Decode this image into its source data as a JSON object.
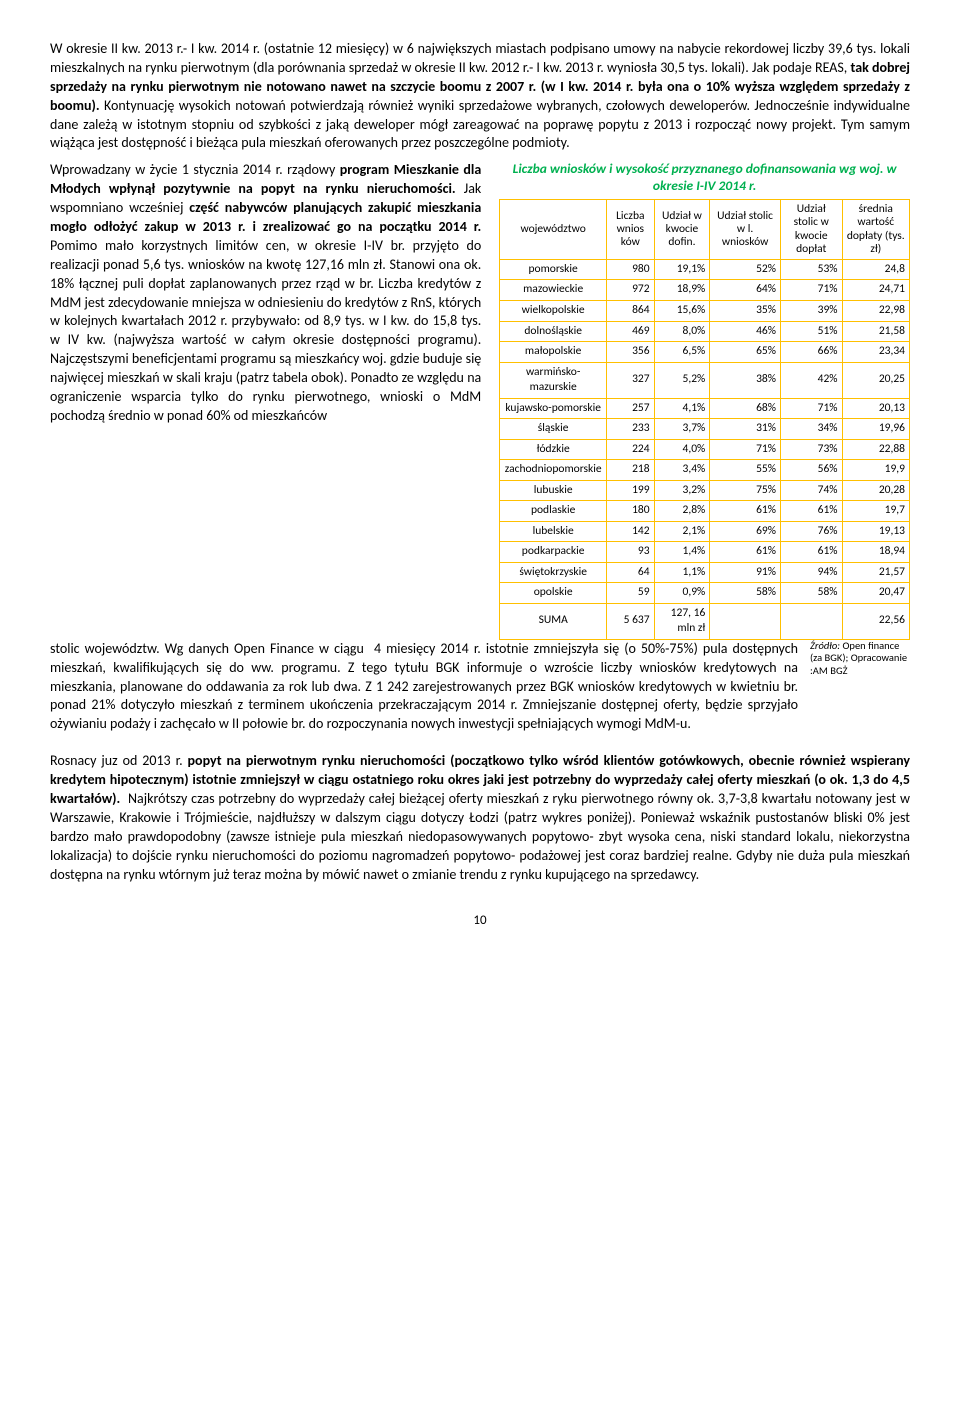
{
  "para1_text": "W okresie II kw. 2013 r.- I kw. 2014 r. (ostatnie 12 miesięcy) w 6 największych miastach podpisano umowy na nabycie rekordowej liczby 39,6 tys. lokali mieszkalnych na rynku pierwotnym (dla porównania sprzedaż w okresie II kw. 2012 r.- I kw. 2013 r. wyniosła 30,5 tys. lokali). Jak podaje REAS, tak dobrej sprzedaży na rynku pierwotnym nie notowano nawet na szczycie boomu z 2007 r. (w I kw. 2014 r. była ona o 10% wyższa względem sprzedaży z boomu). Kontynuację wysokich notowań potwierdzają również wyniki sprzedażowe wybranych, czołowych deweloperów. Jednocześnie indywidualne dane zależą w istotnym stopniu od szybkości z jaką deweloper mógł zareagować na poprawę popytu z 2013 i rozpocząć nowy projekt. Tym samym wiążąca jest dostępność i bieżąca pula mieszkań oferowanych przez poszczególne podmioty.",
  "para2_text": "Wprowadzany w życie 1 stycznia 2014 r. rządowy program Mieszkanie dla Młodych wpłynął pozytywnie na popyt na rynku nieruchomości. Jak wspomniano wcześniej część nabywców planujących zakupić mieszkania mogło odłożyć zakup w 2013 r. i zrealizować go na początku 2014 r. Pomimo mało korzystnych limitów cen, w okresie I-IV br. przyjęto do realizacji ponad 5,6 tys. wniosków na kwotę 127,16 mln zł. Stanowi ona ok. 18% łącznej puli dopłat zaplanowanych przez rząd w br. Liczba kredytów z MdM jest zdecydowanie mniejsza w odniesieniu do kredytów z RnS, których w kolejnych kwartałach 2012 r. przybywało: od 8,9 tys. w I kw. do 15,8 tys. w IV kw. (najwyższa wartość w całym okresie dostępności programu). Najczęstszymi beneficjentami programu są mieszkańcy woj. gdzie buduje się najwięcej mieszkań w skali kraju (patrz tabela obok). Ponadto ze względu na ograniczenie wsparcia tylko do rynku pierwotnego, wnioski o MdM pochodzą średnio w ponad 60% od mieszkańców",
  "para3_text": "stolic województw. Wg danych Open Finance w ciągu 4 miesięcy 2014 r. istotnie zmniejszyła się (o 50%-75%) pula dostępnych mieszkań, kwalifikujących się do ww. programu. Z tego tytułu BGK informuje o wzroście liczby wniosków kredytowych na mieszkania, planowane do oddawania za rok lub dwa. Z 1 242 zarejestrowanych przez BGK wniosków kredytowych w kwietniu br. ponad 21% dotyczyło mieszkań z terminem ukończenia przekraczającym 2014 r. Zmniejszanie dostępnej oferty, będzie sprzyjało ożywianiu podaży i zachęcało w II połowie br. do rozpoczynania nowych inwestycji spełniających wymogi MdM-u.",
  "para4_text": "Rosnacy juz od 2013 r. popyt na pierwotnym rynku nieruchomości (początkowo tylko wśród klientów gotówkowych, obecnie również wspierany kredytem hipotecznym) istotnie zmniejszył w ciągu ostatniego roku okres jaki jest potrzebny do wyprzedaży całej oferty mieszkań (o ok. 1,3 do 4,5 kwartałów). Najkrótszy czas potrzebny do wyprzedaży całej bieżącej oferty mieszkań z ryku pierwotnego równy ok. 3,7-3,8 kwartału notowany jest w Warszawie, Krakowie i Trójmieście, najdłuższy w dalszym ciągu dotyczy Łodzi (patrz wykres poniżej). Ponieważ wskaźnik pustostanów bliski 0% jest bardzo mało prawdopodobny (zawsze istnieje pula mieszkań niedopasowywanych popytowo- zbyt wysoka cena, niski standard lokalu, niekorzystna lokalizacja) to dojście rynku nieruchomości do poziomu nagromadzeń popytowo- podażowej jest coraz bardziej realne. Gdyby nie duża pula mieszkań dostępna na rynku wtórnym już teraz można by mówić nawet o zmianie trendu z rynku kupującego na sprzedawcy.",
  "table": {
    "title": "Liczba wniosków i wysokość przyznanego dofinansowania wg woj. w okresie I-IV 2014 r.",
    "headers": [
      "województwo",
      "Liczba wnios ków",
      "Udział w kwocie dofin.",
      "Udział stolic w l. wniosków",
      "Udział stolic w kwocie dopłat",
      "średnia wartość dopłaty (tys. zł)"
    ],
    "rows": [
      [
        "pomorskie",
        "980",
        "19,1%",
        "52%",
        "53%",
        "24,8"
      ],
      [
        "mazowieckie",
        "972",
        "18,9%",
        "64%",
        "71%",
        "24,71"
      ],
      [
        "wielkopolskie",
        "864",
        "15,6%",
        "35%",
        "39%",
        "22,98"
      ],
      [
        "dolnośląskie",
        "469",
        "8,0%",
        "46%",
        "51%",
        "21,58"
      ],
      [
        "małopolskie",
        "356",
        "6,5%",
        "65%",
        "66%",
        "23,34"
      ],
      [
        "warmińsko-mazurskie",
        "327",
        "5,2%",
        "38%",
        "42%",
        "20,25"
      ],
      [
        "kujawsko-pomorskie",
        "257",
        "4,1%",
        "68%",
        "71%",
        "20,13"
      ],
      [
        "śląskie",
        "233",
        "3,7%",
        "31%",
        "34%",
        "19,96"
      ],
      [
        "łódzkie",
        "224",
        "4,0%",
        "71%",
        "73%",
        "22,88"
      ],
      [
        "zachodniopomorskie",
        "218",
        "3,4%",
        "55%",
        "56%",
        "19,9"
      ],
      [
        "lubuskie",
        "199",
        "3,2%",
        "75%",
        "74%",
        "20,28"
      ],
      [
        "podlaskie",
        "180",
        "2,8%",
        "61%",
        "61%",
        "19,7"
      ],
      [
        "lubelskie",
        "142",
        "2,1%",
        "69%",
        "76%",
        "19,13"
      ],
      [
        "podkarpackie",
        "93",
        "1,4%",
        "61%",
        "61%",
        "18,94"
      ],
      [
        "świętokrzyskie",
        "64",
        "1,1%",
        "91%",
        "94%",
        "21,57"
      ],
      [
        "opolskie",
        "59",
        "0,9%",
        "58%",
        "58%",
        "20,47"
      ],
      [
        "SUMA",
        "5 637",
        "127, 16 mln zł",
        "",
        "",
        "22,56"
      ]
    ]
  },
  "source_label": "Źródło:",
  "source_text": " Open finance (za BGK); Opracowanie :AM BGŻ",
  "page_number": "10"
}
